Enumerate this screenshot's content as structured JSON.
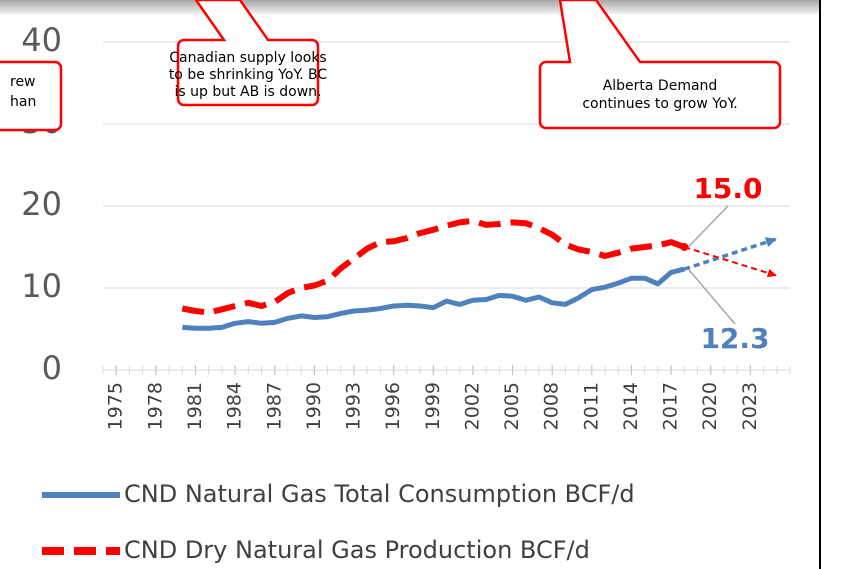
{
  "chart_data": {
    "type": "line",
    "x": [
      1980,
      1981,
      1982,
      1983,
      1984,
      1985,
      1986,
      1987,
      1988,
      1989,
      1990,
      1991,
      1992,
      1993,
      1994,
      1995,
      1996,
      1997,
      1998,
      1999,
      2000,
      2001,
      2002,
      2003,
      2004,
      2005,
      2006,
      2007,
      2008,
      2009,
      2010,
      2011,
      2012,
      2013,
      2014,
      2015,
      2016,
      2017,
      2018
    ],
    "series": [
      {
        "name": "CND Natural Gas Total Consumption BCF/d",
        "color": "#4f81bd",
        "dash": false,
        "values": [
          5.2,
          5.1,
          5.1,
          5.2,
          5.7,
          5.9,
          5.7,
          5.8,
          6.3,
          6.6,
          6.4,
          6.5,
          6.9,
          7.2,
          7.3,
          7.5,
          7.8,
          7.9,
          7.8,
          7.6,
          8.4,
          8.0,
          8.5,
          8.6,
          9.1,
          9.0,
          8.5,
          8.9,
          8.2,
          8.0,
          8.8,
          9.8,
          10.1,
          10.6,
          11.2,
          11.2,
          10.5,
          11.9,
          12.3
        ]
      },
      {
        "name": "CND Dry Natural Gas Production BCF/d",
        "color": "#ff0000",
        "dash": true,
        "values": [
          7.5,
          7.2,
          7.0,
          7.4,
          7.8,
          8.2,
          7.8,
          8.3,
          9.4,
          10.0,
          10.3,
          10.9,
          12.4,
          13.6,
          14.8,
          15.6,
          15.7,
          16.1,
          16.7,
          17.1,
          17.6,
          18.0,
          18.2,
          17.7,
          17.8,
          18.0,
          17.9,
          17.3,
          16.5,
          15.3,
          14.7,
          14.4,
          13.9,
          14.3,
          14.8,
          15.0,
          15.2,
          15.6,
          15.0
        ]
      }
    ],
    "projections": [
      {
        "color": "#4f81bd",
        "x": [
          2018,
          2025
        ],
        "values": [
          12.3,
          16
        ]
      },
      {
        "color": "#ff0000",
        "x": [
          2018,
          2025
        ],
        "values": [
          15.0,
          11.5
        ]
      }
    ],
    "end_labels": [
      {
        "text": "15.0",
        "color": "#ff0000",
        "value": 15.0
      },
      {
        "text": "12.3",
        "color": "#4f81bd",
        "value": 12.3
      }
    ],
    "xlim": [
      1974,
      2026
    ],
    "xticks": [
      1975,
      1978,
      1981,
      1984,
      1987,
      1990,
      1993,
      1996,
      1999,
      2002,
      2005,
      2008,
      2011,
      2014,
      2017,
      2020,
      2023
    ],
    "ylim": [
      0,
      40
    ],
    "yticks": [
      0,
      10,
      20,
      30,
      40
    ],
    "grid": true,
    "callouts": [
      {
        "lines": [
          "rew",
          "han"
        ]
      },
      {
        "lines": [
          "Canadian supply looks",
          "to be shrinking YoY. BC",
          "is up but AB is down."
        ]
      },
      {
        "lines": [
          "Alberta Demand",
          "continues to grow YoY."
        ]
      }
    ]
  }
}
